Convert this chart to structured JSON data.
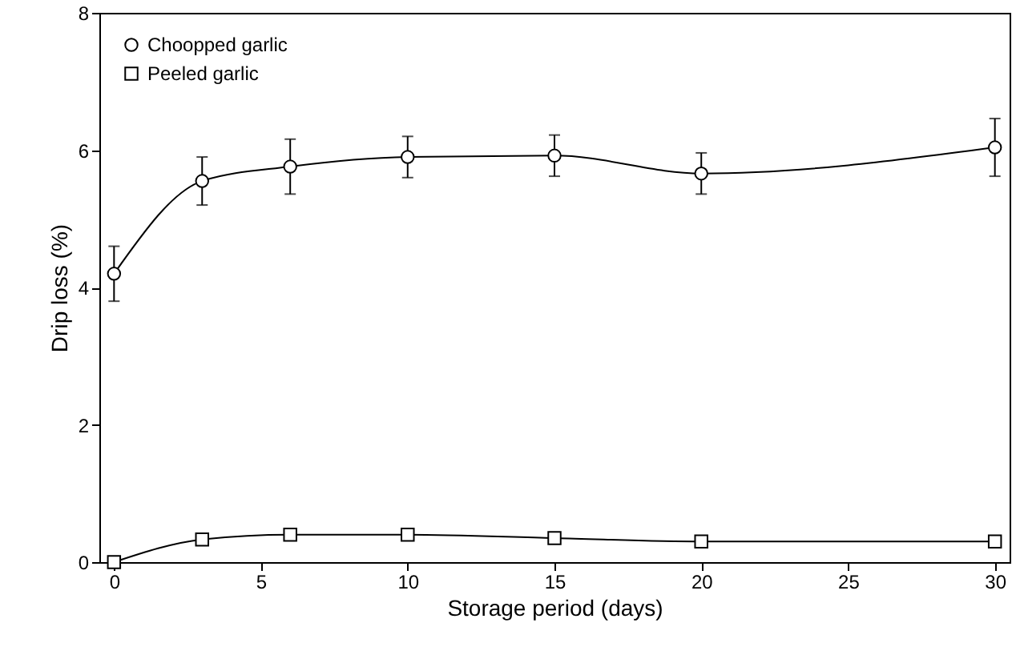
{
  "chart_data": {
    "type": "line",
    "xlabel": "Storage period (days)",
    "ylabel": "Drip loss (%)",
    "xlim": [
      -0.5,
      30.5
    ],
    "ylim": [
      0,
      8
    ],
    "xticks": [
      0,
      5,
      10,
      15,
      20,
      25,
      30
    ],
    "yticks": [
      0,
      2,
      4,
      6,
      8
    ],
    "grid": false,
    "legend": "top left",
    "x": [
      0,
      3,
      6,
      10,
      15,
      20,
      30
    ],
    "series": [
      {
        "name": "Choopped garlic",
        "color": "#000000",
        "marker": "circle",
        "values": [
          4.2,
          5.55,
          5.76,
          5.9,
          5.92,
          5.66,
          6.04
        ],
        "errors": [
          0.4,
          0.35,
          0.4,
          0.3,
          0.3,
          0.3,
          0.42
        ]
      },
      {
        "name": "Peeled garlic",
        "color": "#000000",
        "marker": "square",
        "values": [
          0,
          0.33,
          0.4,
          0.4,
          0.35,
          0.3,
          0.3
        ]
      }
    ]
  }
}
